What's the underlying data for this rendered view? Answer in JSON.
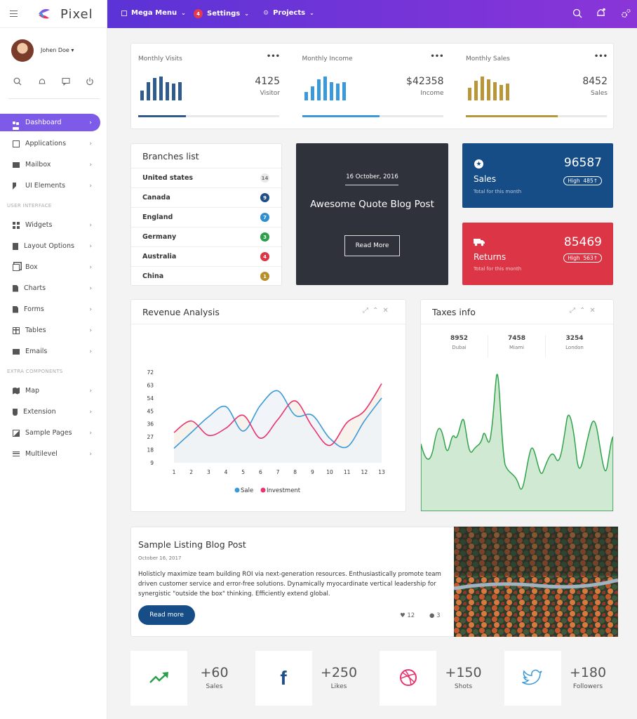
{
  "brand": {
    "name": "Pixel"
  },
  "topbar": {
    "mega_menu": "Mega Menu",
    "settings": "Settings",
    "settings_badge": "4",
    "projects": "Projects"
  },
  "user": {
    "name": "Johen Doe"
  },
  "nav": {
    "items": [
      "Dashboard",
      "Applications",
      "Mailbox",
      "UI Elements"
    ],
    "section1": "USER INTERFACE",
    "items2": [
      "Widgets",
      "Layout Options",
      "Box",
      "Charts",
      "Forms",
      "Tables",
      "Emails"
    ],
    "section2": "EXTRA COMPONENTS",
    "items3": [
      "Map",
      "Extension",
      "Sample Pages",
      "Multilevel"
    ]
  },
  "stats": [
    {
      "title": "Monthly Visits",
      "value": "4125",
      "unit": "Visitor",
      "color": "#2f5b8f",
      "progress": 0.34
    },
    {
      "title": "Monthly Income",
      "value": "$42358",
      "unit": "Income",
      "color": "#3a9ad9",
      "progress": 0.55
    },
    {
      "title": "Monthly Sales",
      "value": "8452",
      "unit": "Sales",
      "color": "#b9963a",
      "progress": 0.65
    }
  ],
  "stats_menu": "•••",
  "branches": {
    "title": "Branches list",
    "rows": [
      {
        "name": "United states",
        "count": "14",
        "color": "#e8e8ea",
        "text": "#777"
      },
      {
        "name": "Canada",
        "count": "9",
        "color": "#1f4f86",
        "text": "#fff"
      },
      {
        "name": "England",
        "count": "7",
        "color": "#2f8fd0",
        "text": "#fff"
      },
      {
        "name": "Germany",
        "count": "3",
        "color": "#2aa04a",
        "text": "#fff"
      },
      {
        "name": "Australia",
        "count": "4",
        "color": "#dc3545",
        "text": "#fff"
      },
      {
        "name": "China",
        "count": "1",
        "color": "#b8902a",
        "text": "#fff"
      }
    ]
  },
  "quote": {
    "date": "16 October, 2016",
    "title": "Awesome Quote Blog Post",
    "button": "Read More"
  },
  "sales_card": {
    "value": "96587",
    "label": "Sales",
    "sub": "Total for this month",
    "badge": "High  485↑",
    "color": "#174d86"
  },
  "returns_card": {
    "value": "85469",
    "label": "Returns",
    "sub": "Total for this month",
    "badge": "High  563↑",
    "color": "#dc3545"
  },
  "revenue": {
    "title": "Revenue Analysis",
    "legend": [
      "Sale",
      "Investment"
    ]
  },
  "chart_data": {
    "type": "line",
    "title": "Revenue Analysis",
    "x": [
      1,
      2,
      3,
      4,
      5,
      6,
      7,
      8,
      9,
      10,
      11,
      12,
      13
    ],
    "ylim": [
      9,
      72
    ],
    "yticks": [
      72,
      63,
      54,
      45,
      36,
      27,
      18,
      9
    ],
    "series": [
      {
        "name": "Sale",
        "color": "#3a9ad9",
        "values": [
          19,
          30,
          41,
          48,
          31,
          49,
          59,
          42,
          42,
          26,
          20,
          38,
          54
        ]
      },
      {
        "name": "Investment",
        "color": "#e8336d",
        "values": [
          30,
          38,
          28,
          33,
          42,
          26,
          39,
          52,
          34,
          21,
          37,
          45,
          64
        ]
      }
    ]
  },
  "taxes": {
    "title": "Taxes info",
    "cities": [
      {
        "value": "8952",
        "name": "Dubai"
      },
      {
        "value": "7458",
        "name": "Miami"
      },
      {
        "value": "3254",
        "name": "London"
      }
    ]
  },
  "blog": {
    "title": "Sample Listing Blog Post",
    "date": "October 16, 2017",
    "body": "Holisticly maximize team building ROI via next-generation resources. Enthusiastically promote team driven customer service and error-free solutions. Dynamically myocardinate vertical leadership for synergistic \"outside the box\" thinking. Efficiently extend global.",
    "button": "Read more",
    "likes": "12",
    "comments": "3"
  },
  "social": [
    {
      "value": "+60",
      "label": "Sales",
      "icon": "trend-up-icon",
      "color": "#2aa04a"
    },
    {
      "value": "+250",
      "label": "Likes",
      "icon": "facebook-icon",
      "color": "#1f4f86"
    },
    {
      "value": "+150",
      "label": "Shots",
      "icon": "dribbble-icon",
      "color": "#e8336d"
    },
    {
      "value": "+180",
      "label": "Followers",
      "icon": "twitter-icon",
      "color": "#3a9ad9"
    }
  ]
}
